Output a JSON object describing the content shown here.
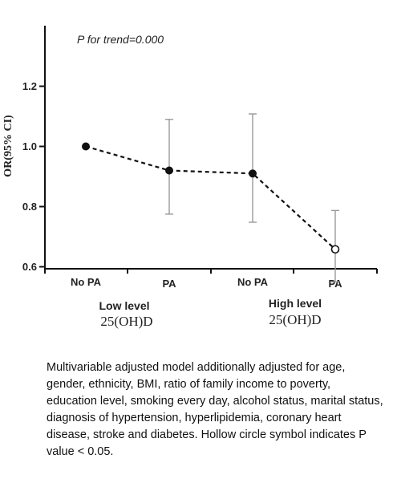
{
  "chart_data": {
    "type": "scatter",
    "annotation": "P for trend=0.000",
    "ylabel": "OR(95% CI)",
    "ylim": [
      0.5,
      1.3
    ],
    "yticks": [
      0.6,
      0.8,
      1.0,
      1.2
    ],
    "ytick_labels": [
      "0.6",
      "0.8",
      "1.0",
      "1.2"
    ],
    "categories": [
      "No PA",
      "PA",
      "No PA",
      "PA"
    ],
    "groups": [
      {
        "label": "Low level",
        "sublabel": "25(OH)D"
      },
      {
        "label": "High level",
        "sublabel": "25(OH)D"
      }
    ],
    "points": [
      {
        "category": "No PA",
        "or": 1.0,
        "lower": null,
        "upper": null,
        "hollow": false
      },
      {
        "category": "PA",
        "or": 0.92,
        "lower": 0.775,
        "upper": 1.09,
        "hollow": false
      },
      {
        "category": "No PA",
        "or": 0.91,
        "lower": 0.748,
        "upper": 1.108,
        "hollow": false
      },
      {
        "category": "PA",
        "or": 0.658,
        "lower": 0.55,
        "upper": 0.787,
        "hollow": true
      }
    ],
    "line_style": "dashed",
    "grid": false
  },
  "caption": "Multivariable adjusted model additionally adjusted for age, gender, ethnicity, BMI, ratio of family income to poverty, education level, smoking every day, alcohol status, marital status, diagnosis of hypertension, hyperlipidemia, coronary heart disease, stroke and diabetes. Hollow circle symbol indicates P value < 0.05."
}
